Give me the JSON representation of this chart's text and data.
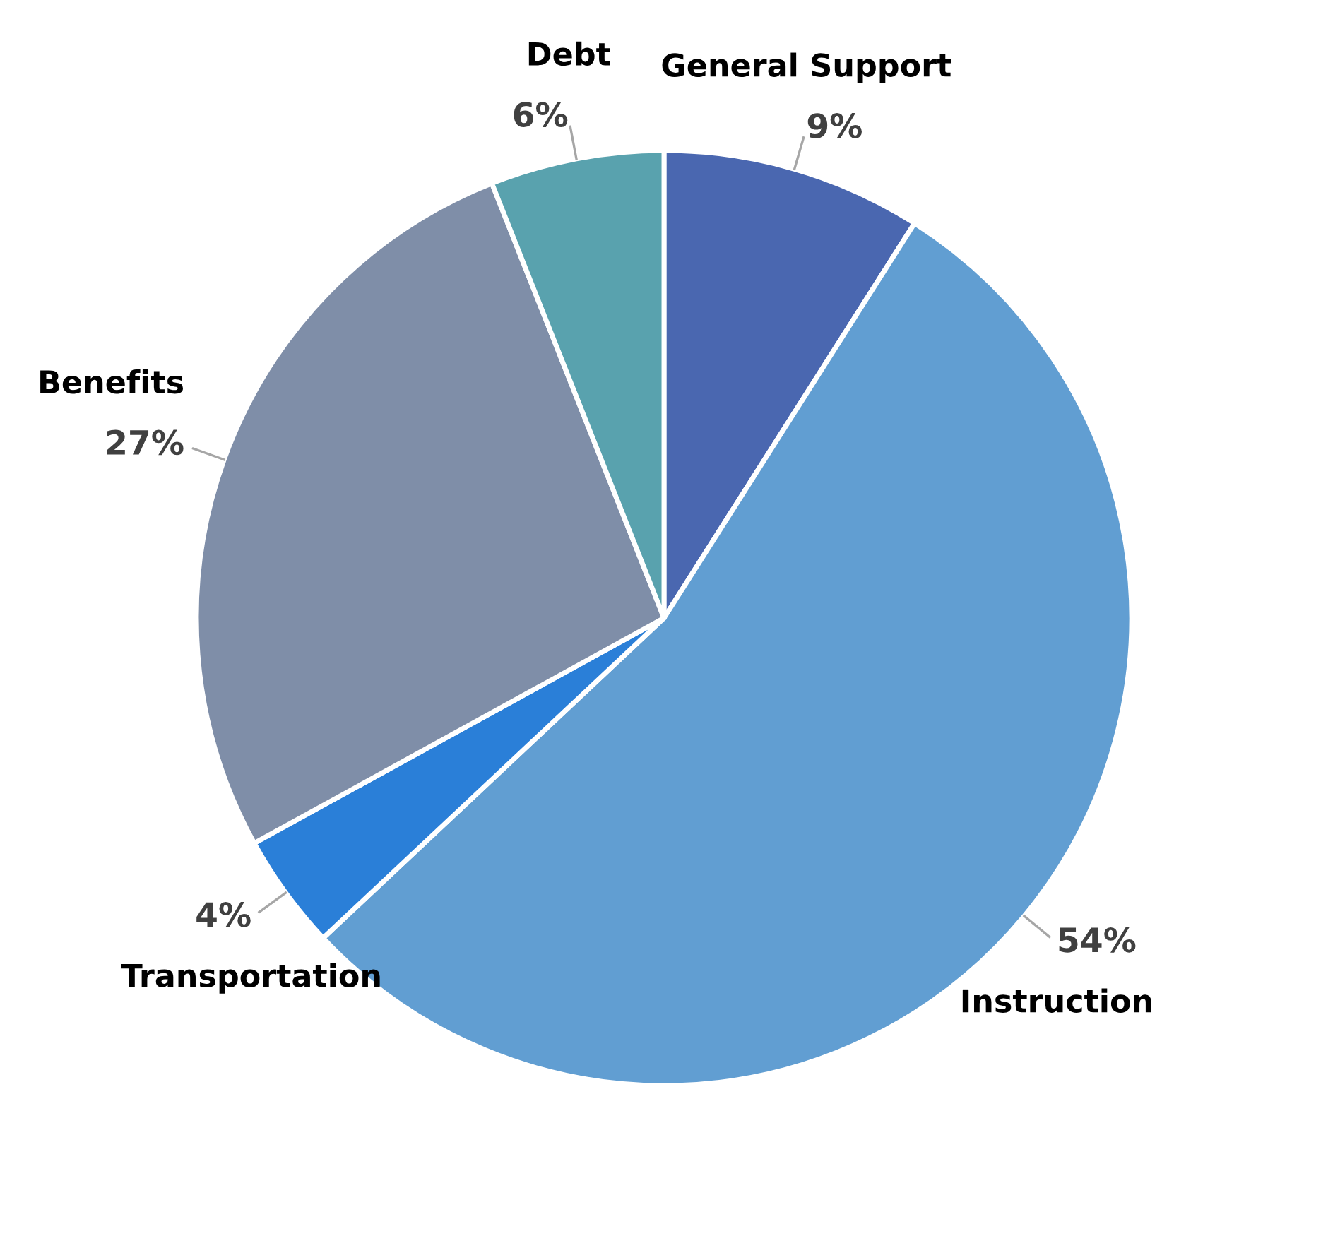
{
  "chart_data": {
    "type": "pie",
    "categories": [
      "General Support",
      "Instruction",
      "Transportation",
      "Benefits",
      "Debt"
    ],
    "values": [
      9,
      54,
      4,
      27,
      6
    ],
    "value_labels": [
      "9%",
      "54%",
      "4%",
      "27%",
      "6%"
    ],
    "colors": [
      "#4a67b0",
      "#619ed2",
      "#2a7fd8",
      "#7f8ea8",
      "#59a2ae"
    ],
    "legend": false
  }
}
